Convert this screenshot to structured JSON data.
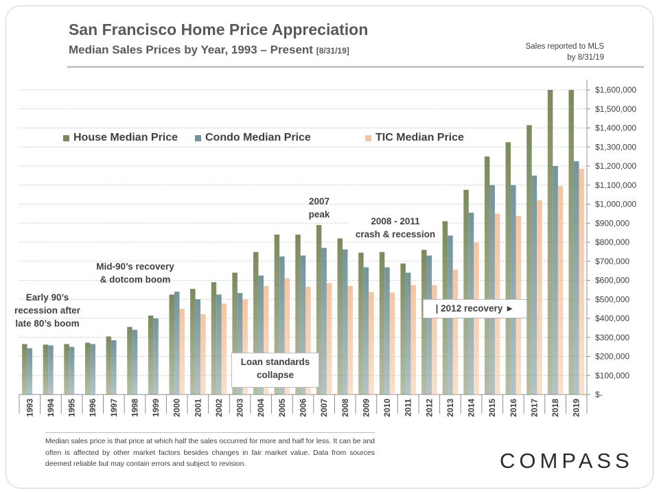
{
  "header": {
    "title": "San Francisco Home Price Appreciation",
    "subtitle": "Median Sales Prices by Year, 1993 – Present",
    "subtitle_note": "[8/31/19]",
    "mls_note_line1": "Sales reported to MLS",
    "mls_note_line2": "by 8/31/19"
  },
  "legend": {
    "house": "House Median Price",
    "condo": "Condo Median Price",
    "tic": "TIC Median Price"
  },
  "colors": {
    "house": "#7b8a5c",
    "condo": "#72959b",
    "tic": "#f5c5a0",
    "grid": "#c9c9c9"
  },
  "annotations": {
    "early90s_1": "Early 90’s",
    "early90s_2": "recession after",
    "early90s_3": "late 80’s boom",
    "mid90s_1": "Mid-90’s recovery",
    "mid90s_2": "& dotcom boom",
    "peak_1": "2007",
    "peak_2": "peak",
    "crash_1": "2008 - 2011",
    "crash_2": "crash & recession",
    "loan_1": "Loan standards",
    "loan_2": "collapse",
    "recovery": "| 2012 recovery ►"
  },
  "footnote": "Median sales price is that price at which half the sales occurred for more and half for less. It can be and often is affected by other market factors besides changes in fair market value. Data from sources deemed reliable but may contain errors and subject to revision.",
  "logo": "COMPASS",
  "chart_data": {
    "type": "bar",
    "categories": [
      "1993",
      "1994",
      "1995",
      "1996",
      "1997",
      "1998",
      "1999",
      "2000",
      "2001",
      "2002",
      "2003",
      "2004",
      "2005",
      "2006",
      "2007",
      "2008",
      "2009",
      "2010",
      "2011",
      "2012",
      "2013",
      "2014",
      "2015",
      "2016",
      "2017",
      "2018",
      "2019"
    ],
    "series": [
      {
        "name": "House Median Price",
        "values": [
          265000,
          262000,
          265000,
          272000,
          305000,
          355000,
          415000,
          525000,
          555000,
          590000,
          640000,
          748000,
          840000,
          840000,
          890000,
          820000,
          745000,
          748000,
          688000,
          760000,
          910000,
          1075000,
          1250000,
          1325000,
          1415000,
          1600000,
          1600000
        ]
      },
      {
        "name": "Condo Median Price",
        "values": [
          243000,
          258000,
          250000,
          265000,
          285000,
          340000,
          400000,
          540000,
          500000,
          525000,
          533000,
          625000,
          725000,
          730000,
          770000,
          762000,
          668000,
          668000,
          640000,
          730000,
          835000,
          955000,
          1100000,
          1100000,
          1150000,
          1200000,
          1225000
        ]
      },
      {
        "name": "TIC Median Price",
        "values": [
          null,
          null,
          null,
          null,
          null,
          null,
          null,
          450000,
          422000,
          478000,
          500000,
          570000,
          610000,
          565000,
          585000,
          570000,
          538000,
          535000,
          575000,
          575000,
          655000,
          798000,
          950000,
          938000,
          1020000,
          1095000,
          1185000
        ]
      }
    ],
    "ylim": [
      0,
      1650000
    ],
    "yticks": [
      0,
      100000,
      200000,
      300000,
      400000,
      500000,
      600000,
      700000,
      800000,
      900000,
      1000000,
      1100000,
      1200000,
      1300000,
      1400000,
      1500000,
      1600000
    ],
    "ytick_labels": [
      "$-",
      "$100,000",
      "$200,000",
      "$300,000",
      "$400,000",
      "$500,000",
      "$600,000",
      "$700,000",
      "$800,000",
      "$900,000",
      "$1,000,000",
      "$1,100,000",
      "$1,200,000",
      "$1,300,000",
      "$1,400,000",
      "$1,500,000",
      "$1,600,000"
    ],
    "grid": true,
    "legend_position": "top-left"
  }
}
